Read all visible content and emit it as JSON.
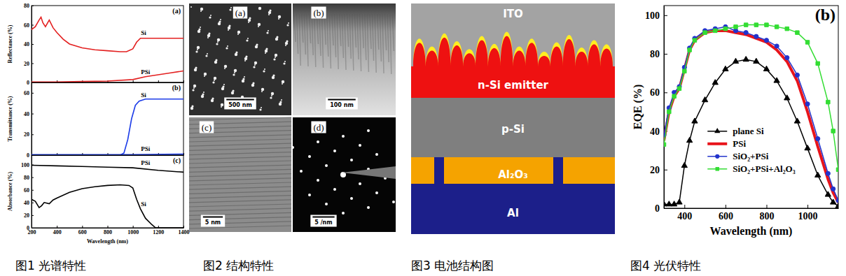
{
  "chart_data": [
    {
      "type": "line",
      "title": "(a)",
      "y_label": "Reflectance (%)",
      "xlim": [
        200,
        1400
      ],
      "xticks": [
        200,
        400,
        600,
        800,
        1000,
        1200,
        1400
      ],
      "ylim": [
        0,
        80
      ],
      "yticks": [
        0,
        20,
        40,
        60,
        80
      ],
      "tick_labels": "y",
      "legend": "inline",
      "series": [
        {
          "name": "Si",
          "color": "#e32020",
          "x": [
            200,
            230,
            260,
            275,
            290,
            310,
            340,
            370,
            400,
            450,
            500,
            600,
            700,
            800,
            900,
            950,
            1000,
            1030,
            1060,
            1100,
            1200,
            1300,
            1400
          ],
          "values": [
            55,
            58,
            65,
            68,
            62,
            58,
            65,
            57,
            52,
            45,
            40,
            36,
            34,
            33,
            32,
            32,
            35,
            42,
            46,
            46,
            46,
            46,
            46
          ]
        },
        {
          "name": "PSi",
          "color": "#e32020",
          "x": [
            200,
            400,
            600,
            800,
            1000,
            1100,
            1200,
            1300,
            1400
          ],
          "values": [
            0.5,
            0.5,
            1,
            1.5,
            3,
            6,
            8,
            10,
            12
          ]
        }
      ]
    },
    {
      "type": "line",
      "title": "(b)",
      "y_label": "Transmittance (%)",
      "xlim": [
        200,
        1400
      ],
      "xticks": [
        200,
        400,
        600,
        800,
        1000,
        1200,
        1400
      ],
      "ylim": [
        0,
        70
      ],
      "yticks": [
        0,
        20,
        40,
        60
      ],
      "tick_labels": "y",
      "legend": "inline",
      "series": [
        {
          "name": "Si",
          "color": "#1c3ce8",
          "x": [
            200,
            400,
            600,
            800,
            900,
            930,
            960,
            990,
            1020,
            1050,
            1100,
            1200,
            1300,
            1400
          ],
          "values": [
            0,
            0,
            0,
            0,
            0,
            2,
            15,
            35,
            48,
            52,
            54,
            54,
            54,
            54
          ]
        },
        {
          "name": "PSi",
          "color": "#1c3ce8",
          "x": [
            200,
            800,
            1000,
            1400
          ],
          "values": [
            0.5,
            0.5,
            0.5,
            1
          ]
        }
      ]
    },
    {
      "type": "line",
      "title": "(c)",
      "y_label": "Absorbance (%)",
      "x_label": "Wavelength (nm)",
      "xlim": [
        200,
        1400
      ],
      "xticks": [
        200,
        400,
        600,
        800,
        1000,
        1200,
        1400
      ],
      "ylim": [
        0,
        115
      ],
      "yticks": [
        0,
        20,
        40,
        60,
        80,
        100
      ],
      "legend": "inline",
      "series": [
        {
          "name": "PSi",
          "color": "#000000",
          "x": [
            200,
            400,
            600,
            800,
            1000,
            1200,
            1400
          ],
          "values": [
            99,
            98,
            97,
            96,
            95,
            91,
            88
          ]
        },
        {
          "name": "Si",
          "color": "#000000",
          "x": [
            200,
            230,
            260,
            280,
            300,
            340,
            370,
            400,
            500,
            600,
            700,
            800,
            900,
            970,
            1000,
            1030,
            1060,
            1100,
            1150,
            1180,
            1200,
            1300,
            1400
          ],
          "values": [
            45,
            42,
            32,
            35,
            40,
            38,
            44,
            47,
            56,
            62,
            65,
            67,
            68,
            67,
            63,
            45,
            30,
            15,
            5,
            0,
            0,
            0,
            0
          ]
        }
      ]
    },
    {
      "type": "line",
      "title": "(b)",
      "y_label": "EQE (%)",
      "x_label": "Wavelength (nm)",
      "xlim": [
        300,
        1150
      ],
      "xticks": [
        400,
        600,
        800,
        1000
      ],
      "ylim": [
        0,
        105
      ],
      "yticks": [
        0,
        20,
        40,
        60,
        80,
        100
      ],
      "legend": "center",
      "x": [
        300,
        325,
        350,
        375,
        400,
        425,
        450,
        500,
        550,
        600,
        650,
        700,
        750,
        800,
        850,
        900,
        950,
        1000,
        1050,
        1100,
        1125,
        1150
      ],
      "series": [
        {
          "name": "plane Si",
          "color": "#000000",
          "marker": "triangle",
          "line_style": "solid",
          "values": [
            2,
            2,
            2,
            3,
            22,
            35,
            45,
            56,
            65,
            72,
            76,
            77,
            76,
            72,
            66,
            57,
            45,
            31,
            17,
            7,
            3,
            1
          ]
        },
        {
          "name": "PSi",
          "color": "#e8141b",
          "line_style": "thick",
          "values": [
            35,
            50,
            58,
            62,
            72,
            82,
            87,
            91,
            92,
            92,
            91,
            90,
            88,
            86,
            82,
            76,
            66,
            50,
            32,
            15,
            8,
            3
          ]
        },
        {
          "name": "SiO₂+PSi",
          "color": "#2233cc",
          "marker": "circle",
          "line_style": "solid",
          "values": [
            38,
            52,
            60,
            63,
            73,
            83,
            88,
            92,
            93,
            94,
            92,
            91,
            89,
            87,
            84,
            78,
            69,
            54,
            36,
            18,
            10,
            4
          ]
        },
        {
          "name": "SiO₂+PSi+Al₂O₃",
          "color": "#33dd33",
          "marker": "square",
          "line_style": "solid",
          "values": [
            33,
            50,
            58,
            62,
            71,
            82,
            87,
            91,
            92,
            93,
            94,
            95,
            95,
            95,
            94,
            93,
            91,
            86,
            75,
            55,
            40,
            20
          ]
        }
      ]
    }
  ],
  "micrographs": [
    {
      "label": "(a)",
      "scale_bar": "500 nm"
    },
    {
      "label": "(b)",
      "scale_bar": "100 nm"
    },
    {
      "label": "(c)",
      "scale_bar": "5 nm"
    },
    {
      "label": "(d)",
      "scale_bar": "5 /nm"
    }
  ],
  "diagram": {
    "layers": [
      "ITO",
      "n-Si emitter",
      "p-Si",
      "Al₂O₃",
      "Al"
    ]
  },
  "captions": [
    "图1 光谱特性",
    "图2 结构特性",
    "图3 电池结构图",
    "图4 光伏特性"
  ]
}
